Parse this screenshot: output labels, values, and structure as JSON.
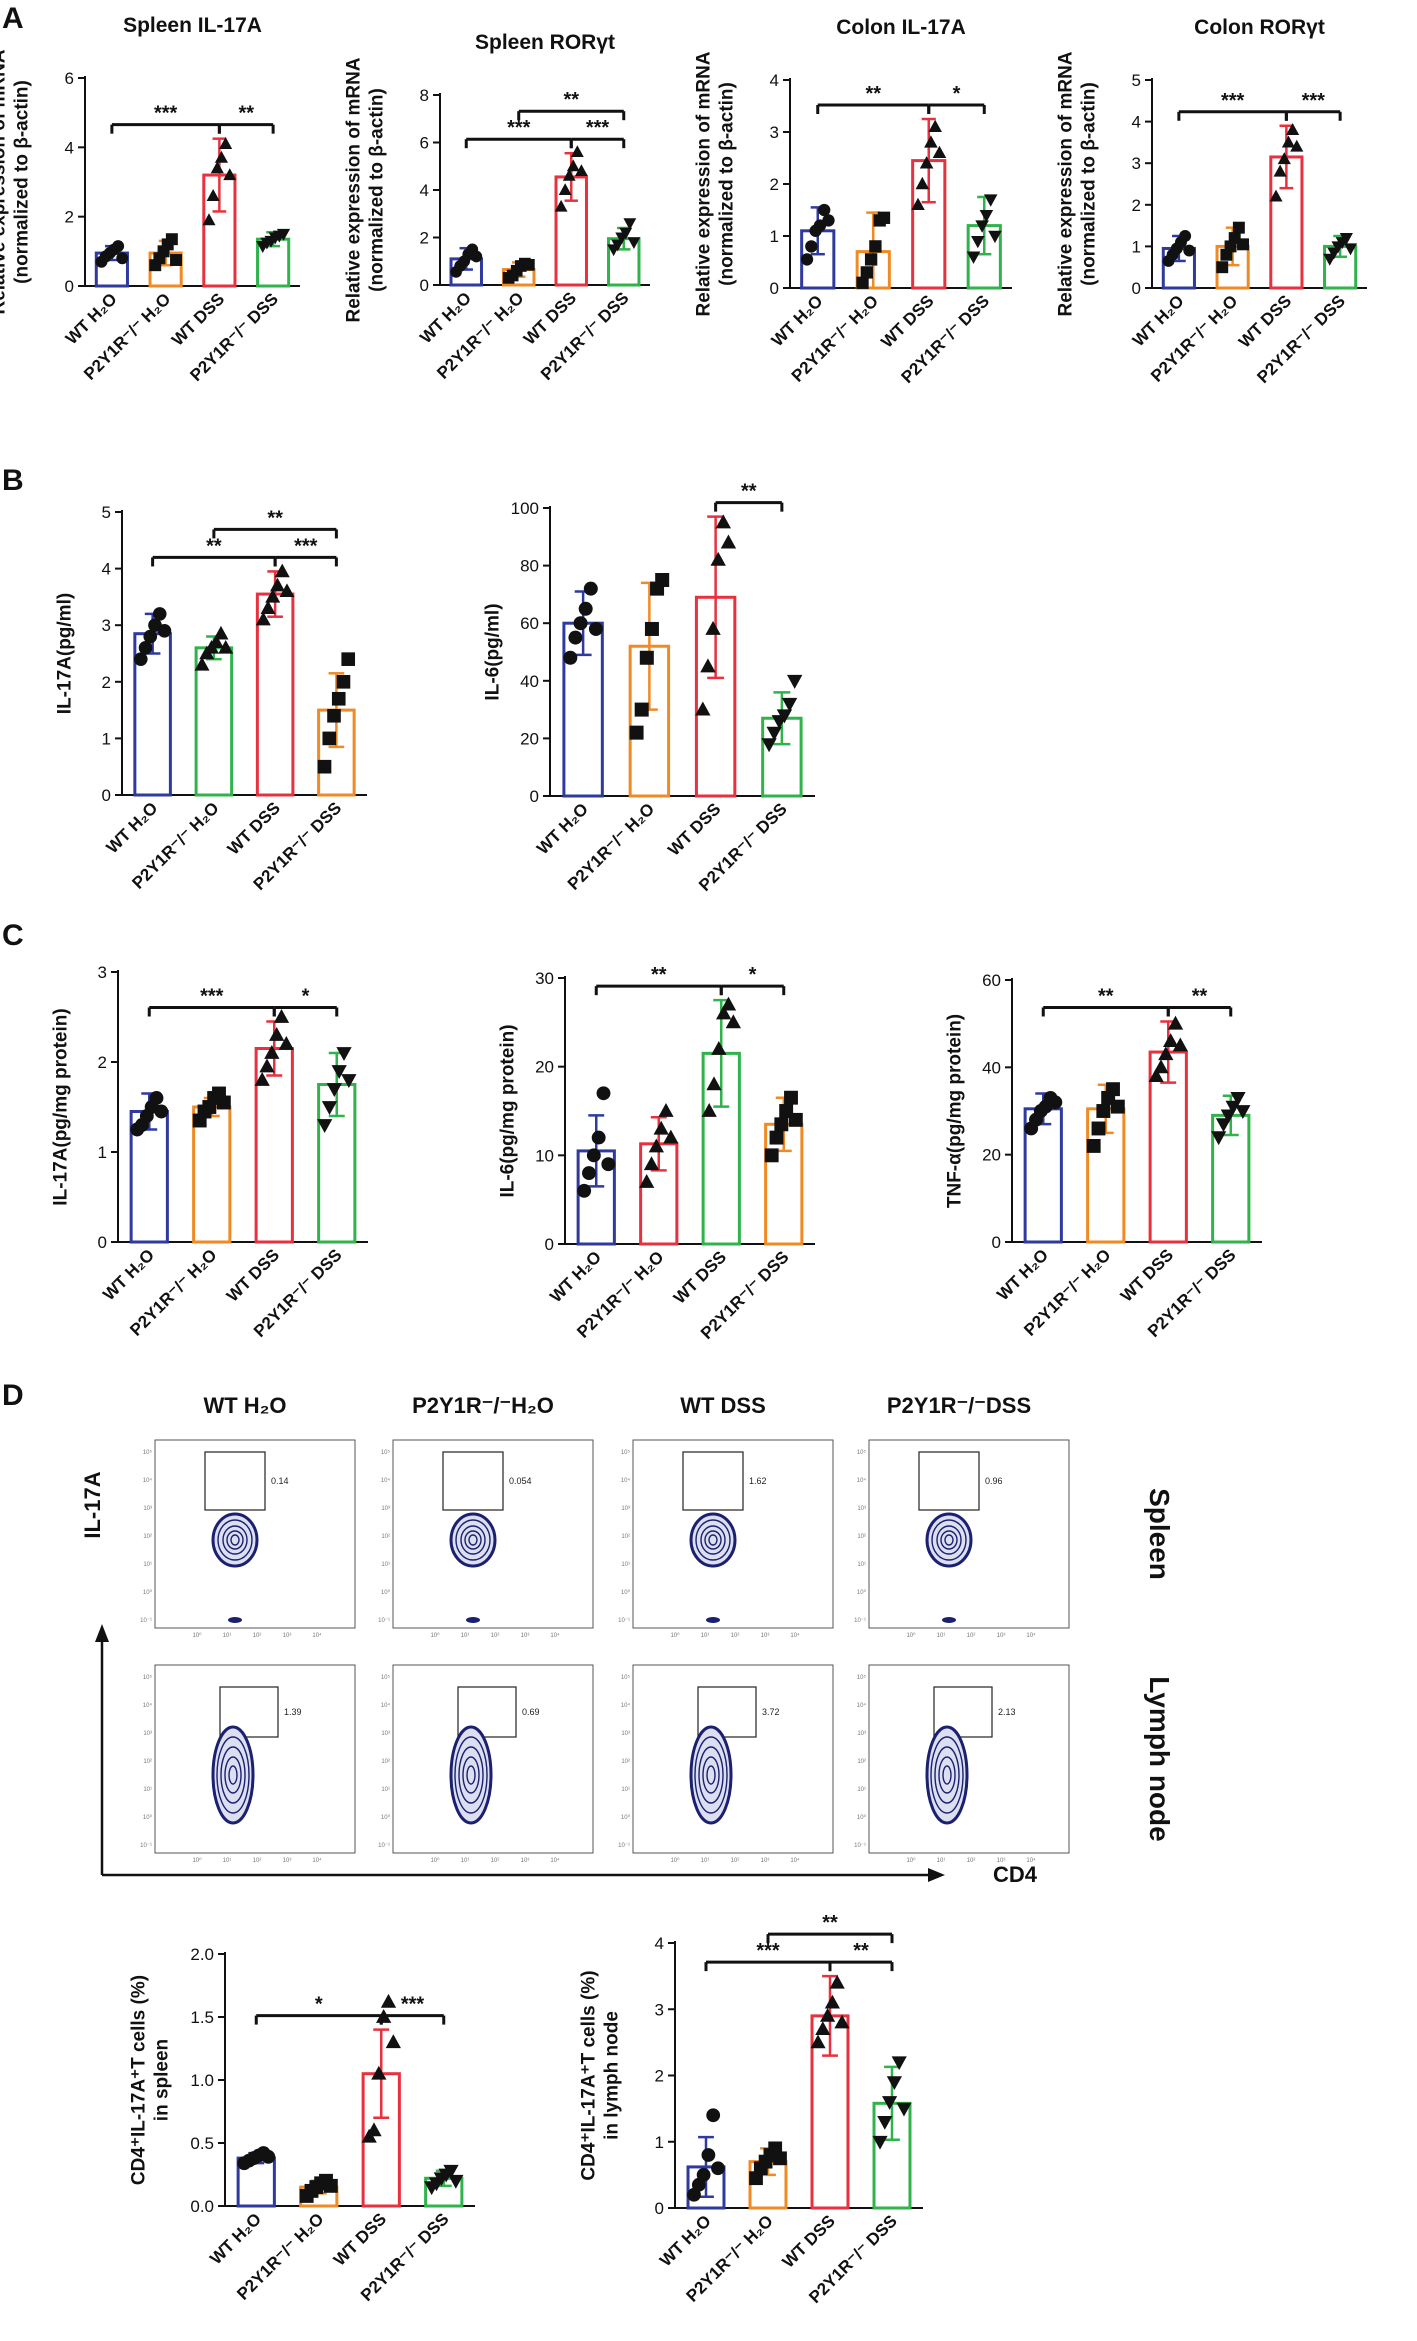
{
  "panel_labels": [
    "A",
    "B",
    "C",
    "D"
  ],
  "colors": {
    "blue": "#2e3a9e",
    "orange": "#f08a24",
    "red": "#e8313f",
    "green": "#2fb34a"
  },
  "chart_data": [
    {
      "id": "A1",
      "type": "bar",
      "title": "Spleen IL-17A",
      "ylabel": "Relative expression of mRNA|(normalized to β-actin)",
      "ylim": [
        0,
        6
      ],
      "yticks": [
        0,
        2,
        4,
        6
      ],
      "categories": [
        "WT H₂O",
        "P2Y1R⁻/⁻ H₂O",
        "WT DSS",
        "P2Y1R⁻/⁻ DSS"
      ],
      "bar_colors": [
        "blue",
        "orange",
        "red",
        "green"
      ],
      "values": [
        0.95,
        0.95,
        3.2,
        1.35
      ],
      "sd": [
        0.2,
        0.35,
        1.05,
        0.2
      ],
      "markers": [
        "circle",
        "square",
        "triangle",
        "triangle-down"
      ],
      "points": [
        [
          0.7,
          0.85,
          0.95,
          1.05,
          1.15,
          0.8
        ],
        [
          0.6,
          0.8,
          1.0,
          1.2,
          1.35,
          0.75
        ],
        [
          1.9,
          2.6,
          3.4,
          3.7,
          4.1,
          3.2
        ],
        [
          1.15,
          1.25,
          1.3,
          1.4,
          1.45,
          1.5
        ]
      ],
      "brackets": [
        {
          "from": 0,
          "to": 2,
          "label": "***",
          "level": 0
        },
        {
          "from": 2,
          "to": 3,
          "label": "**",
          "level": 0
        }
      ]
    },
    {
      "id": "A2",
      "type": "bar",
      "title": "Spleen RORγt",
      "ylabel": "Relative expression of mRNA|(normalized to β-actin)",
      "ylim": [
        0,
        8
      ],
      "yticks": [
        0,
        2,
        4,
        6,
        8
      ],
      "categories": [
        "WT H₂O",
        "P2Y1R⁻/⁻ H₂O",
        "WT DSS",
        "P2Y1R⁻/⁻ DSS"
      ],
      "bar_colors": [
        "blue",
        "orange",
        "red",
        "green"
      ],
      "values": [
        1.1,
        0.65,
        4.55,
        1.95
      ],
      "sd": [
        0.45,
        0.3,
        1.0,
        0.45
      ],
      "markers": [
        "circle",
        "square",
        "triangle",
        "triangle-down"
      ],
      "points": [
        [
          0.55,
          0.8,
          1.0,
          1.3,
          1.5,
          1.2
        ],
        [
          0.3,
          0.4,
          0.6,
          0.8,
          0.9,
          0.85
        ],
        [
          3.3,
          4.0,
          4.6,
          5.0,
          5.6,
          4.8
        ],
        [
          1.5,
          1.7,
          2.0,
          2.2,
          2.6,
          1.8
        ]
      ],
      "brackets": [
        {
          "from": 0,
          "to": 2,
          "label": "***",
          "level": 0
        },
        {
          "from": 2,
          "to": 3,
          "label": "***",
          "level": 0
        },
        {
          "from": 1,
          "to": 3,
          "label": "**",
          "level": 1
        }
      ]
    },
    {
      "id": "A3",
      "type": "bar",
      "title": "Colon IL-17A",
      "ylabel": "Relative expression of mRNA|(normalized to β-actin)",
      "ylim": [
        0,
        4
      ],
      "yticks": [
        0,
        1,
        2,
        3,
        4
      ],
      "categories": [
        "WT H₂O",
        "P2Y1R⁻/⁻ H₂O",
        "WT DSS",
        "P2Y1R⁻/⁻ DSS"
      ],
      "bar_colors": [
        "blue",
        "orange",
        "red",
        "green"
      ],
      "values": [
        1.1,
        0.7,
        2.45,
        1.2
      ],
      "sd": [
        0.45,
        0.75,
        0.8,
        0.55
      ],
      "markers": [
        "circle",
        "square",
        "triangle",
        "triangle-down"
      ],
      "points": [
        [
          0.55,
          0.8,
          1.1,
          1.2,
          1.5,
          1.3
        ],
        [
          0.1,
          0.3,
          0.55,
          0.8,
          1.3,
          1.35
        ],
        [
          1.6,
          2.0,
          2.4,
          2.8,
          3.1,
          2.6
        ],
        [
          0.6,
          0.9,
          1.2,
          1.4,
          1.7,
          1.0
        ]
      ],
      "brackets": [
        {
          "from": 0,
          "to": 2,
          "label": "**",
          "level": 0
        },
        {
          "from": 2,
          "to": 3,
          "label": "*",
          "level": 0
        }
      ]
    },
    {
      "id": "A4",
      "type": "bar",
      "title": "Colon RORγt",
      "ylabel": "Relative expression of mRNA|(normalized to β-actin)",
      "ylim": [
        0,
        5
      ],
      "yticks": [
        0,
        1,
        2,
        3,
        4,
        5
      ],
      "categories": [
        "WT H₂O",
        "P2Y1R⁻/⁻ H₂O",
        "WT DSS",
        "P2Y1R⁻/⁻ DSS"
      ],
      "bar_colors": [
        "blue",
        "orange",
        "red",
        "green"
      ],
      "values": [
        0.95,
        1.0,
        3.15,
        1.0
      ],
      "sd": [
        0.3,
        0.45,
        0.75,
        0.25
      ],
      "markers": [
        "circle",
        "square",
        "triangle",
        "triangle-down"
      ],
      "points": [
        [
          0.65,
          0.8,
          0.95,
          1.1,
          1.25,
          0.9
        ],
        [
          0.5,
          0.8,
          1.0,
          1.2,
          1.45,
          1.05
        ],
        [
          2.2,
          2.8,
          3.1,
          3.5,
          3.8,
          3.4
        ],
        [
          0.7,
          0.85,
          1.0,
          1.1,
          1.2,
          0.95
        ]
      ],
      "brackets": [
        {
          "from": 0,
          "to": 2,
          "label": "***",
          "level": 0
        },
        {
          "from": 2,
          "to": 3,
          "label": "***",
          "level": 0
        }
      ]
    },
    {
      "id": "B1",
      "type": "bar",
      "title": "",
      "ylabel": "IL-17A(pg/ml)",
      "ylim": [
        0,
        5
      ],
      "yticks": [
        0,
        1,
        2,
        3,
        4,
        5
      ],
      "categories": [
        "WT H₂O",
        "P2Y1R⁻/⁻ H₂O",
        "WT DSS",
        "P2Y1R⁻/⁻ DSS"
      ],
      "bar_colors": [
        "blue",
        "green",
        "red",
        "orange"
      ],
      "values": [
        2.85,
        2.6,
        3.55,
        1.5
      ],
      "sd": [
        0.35,
        0.2,
        0.4,
        0.65
      ],
      "markers": [
        "circle",
        "triangle",
        "triangle",
        "square"
      ],
      "points": [
        [
          2.4,
          2.6,
          2.8,
          3.0,
          3.2,
          2.9
        ],
        [
          2.3,
          2.5,
          2.6,
          2.7,
          2.85,
          2.6
        ],
        [
          3.1,
          3.3,
          3.5,
          3.7,
          3.95,
          3.6
        ],
        [
          0.5,
          1.0,
          1.4,
          1.7,
          2.0,
          2.4
        ]
      ],
      "brackets": [
        {
          "from": 0,
          "to": 2,
          "label": "**",
          "level": 0
        },
        {
          "from": 2,
          "to": 3,
          "label": "***",
          "level": 0
        },
        {
          "from": 1,
          "to": 3,
          "label": "**",
          "level": 1
        }
      ]
    },
    {
      "id": "B2",
      "type": "bar",
      "title": "",
      "ylabel": "IL-6(pg/ml)",
      "ylim": [
        0,
        100
      ],
      "yticks": [
        0,
        20,
        40,
        60,
        80,
        100
      ],
      "categories": [
        "WT H₂O",
        "P2Y1R⁻/⁻ H₂O",
        "WT DSS",
        "P2Y1R⁻/⁻ DSS"
      ],
      "bar_colors": [
        "blue",
        "orange",
        "red",
        "green"
      ],
      "values": [
        60,
        52,
        69,
        27
      ],
      "sd": [
        11,
        22,
        28,
        9
      ],
      "markers": [
        "circle",
        "square",
        "triangle",
        "triangle-down"
      ],
      "points": [
        [
          48,
          55,
          60,
          65,
          72,
          58
        ],
        [
          22,
          30,
          48,
          58,
          72,
          75
        ],
        [
          30,
          45,
          58,
          82,
          95,
          88
        ],
        [
          18,
          22,
          26,
          28,
          32,
          40
        ]
      ],
      "brackets": [
        {
          "from": 2,
          "to": 3,
          "label": "**",
          "level": 0
        }
      ]
    },
    {
      "id": "C1",
      "type": "bar",
      "title": "",
      "ylabel": "IL-17A(pg/mg protein)",
      "ylim": [
        0,
        3
      ],
      "yticks": [
        0,
        1,
        2,
        3
      ],
      "categories": [
        "WT H₂O",
        "P2Y1R⁻/⁻ H₂O",
        "WT DSS",
        "P2Y1R⁻/⁻ DSS"
      ],
      "bar_colors": [
        "blue",
        "orange",
        "red",
        "green"
      ],
      "values": [
        1.45,
        1.5,
        2.15,
        1.75
      ],
      "sd": [
        0.2,
        0.1,
        0.3,
        0.35
      ],
      "markers": [
        "circle",
        "square",
        "triangle",
        "triangle-down"
      ],
      "points": [
        [
          1.25,
          1.3,
          1.4,
          1.5,
          1.6,
          1.45
        ],
        [
          1.35,
          1.45,
          1.5,
          1.6,
          1.65,
          1.55
        ],
        [
          1.8,
          1.95,
          2.1,
          2.3,
          2.5,
          2.2
        ],
        [
          1.3,
          1.5,
          1.7,
          1.9,
          2.1,
          1.8
        ]
      ],
      "brackets": [
        {
          "from": 0,
          "to": 2,
          "label": "***",
          "level": 0
        },
        {
          "from": 2,
          "to": 3,
          "label": "*",
          "level": 0
        }
      ]
    },
    {
      "id": "C2",
      "type": "bar",
      "title": "",
      "ylabel": "IL-6(pg/mg protein)",
      "ylim": [
        0,
        30
      ],
      "yticks": [
        0,
        10,
        20,
        30
      ],
      "categories": [
        "WT H₂O",
        "P2Y1R⁻/⁻ H₂O",
        "WT DSS",
        "P2Y1R⁻/⁻ DSS"
      ],
      "bar_colors": [
        "blue",
        "red",
        "green",
        "orange"
      ],
      "values": [
        10.5,
        11.3,
        21.5,
        13.5
      ],
      "sd": [
        4.0,
        3.0,
        6.0,
        3.0
      ],
      "markers": [
        "circle",
        "triangle",
        "triangle",
        "square"
      ],
      "points": [
        [
          6,
          8,
          10,
          12,
          17,
          9
        ],
        [
          7,
          9,
          11,
          13,
          15,
          12
        ],
        [
          15,
          18,
          22,
          26,
          27,
          25
        ],
        [
          10,
          12,
          13.5,
          15,
          16.5,
          14
        ]
      ],
      "brackets": [
        {
          "from": 0,
          "to": 2,
          "label": "**",
          "level": 0
        },
        {
          "from": 2,
          "to": 3,
          "label": "*",
          "level": 0
        }
      ]
    },
    {
      "id": "C3",
      "type": "bar",
      "title": "",
      "ylabel": "TNF-α(pg/mg protein)",
      "ylim": [
        0,
        60
      ],
      "yticks": [
        0,
        20,
        40,
        60
      ],
      "categories": [
        "WT H₂O",
        "P2Y1R⁻/⁻ H₂O",
        "WT DSS",
        "P2Y1R⁻/⁻ DSS"
      ],
      "bar_colors": [
        "blue",
        "orange",
        "red",
        "green"
      ],
      "values": [
        30.5,
        30.5,
        43.5,
        29.0
      ],
      "sd": [
        3.5,
        5.5,
        7.0,
        4.5
      ],
      "markers": [
        "circle",
        "square",
        "triangle",
        "triangle-down"
      ],
      "points": [
        [
          26,
          28,
          30,
          31,
          33,
          32
        ],
        [
          22,
          26,
          30,
          33,
          35,
          31
        ],
        [
          38,
          40,
          43,
          46,
          50,
          45
        ],
        [
          24,
          27,
          29,
          31,
          33,
          30
        ]
      ],
      "brackets": [
        {
          "from": 0,
          "to": 2,
          "label": "**",
          "level": 0
        },
        {
          "from": 2,
          "to": 3,
          "label": "**",
          "level": 0
        }
      ]
    },
    {
      "id": "D1",
      "type": "bar",
      "title": "",
      "ylabel": "CD4⁺IL-17A⁺T cells (%)|in spleen",
      "ylim": [
        0,
        2.0
      ],
      "yticks": [
        0.0,
        0.5,
        1.0,
        1.5,
        2.0
      ],
      "ytick_decimals": 1,
      "categories": [
        "WT H₂O",
        "P2Y1R⁻/⁻ H₂O",
        "WT DSS",
        "P2Y1R⁻/⁻ DSS"
      ],
      "bar_colors": [
        "blue",
        "orange",
        "red",
        "green"
      ],
      "values": [
        0.38,
        0.15,
        1.05,
        0.22
      ],
      "sd": [
        0.04,
        0.05,
        0.35,
        0.06
      ],
      "markers": [
        "circle",
        "square",
        "triangle",
        "triangle-down"
      ],
      "points": [
        [
          0.34,
          0.36,
          0.38,
          0.4,
          0.42,
          0.39
        ],
        [
          0.08,
          0.12,
          0.15,
          0.18,
          0.2,
          0.16
        ],
        [
          0.55,
          0.6,
          1.05,
          1.5,
          1.62,
          1.3
        ],
        [
          0.15,
          0.18,
          0.22,
          0.25,
          0.28,
          0.2
        ]
      ],
      "brackets": [
        {
          "from": 0,
          "to": 2,
          "label": "*",
          "level": 0
        },
        {
          "from": 2,
          "to": 3,
          "label": "***",
          "level": 0
        }
      ]
    },
    {
      "id": "D2",
      "type": "bar",
      "title": "",
      "ylabel": "CD4⁺IL-17A⁺T cells (%)|in lymph node",
      "ylim": [
        0,
        4
      ],
      "yticks": [
        0,
        1,
        2,
        3,
        4
      ],
      "categories": [
        "WT H₂O",
        "P2Y1R⁻/⁻ H₂O",
        "WT DSS",
        "P2Y1R⁻/⁻ DSS"
      ],
      "bar_colors": [
        "blue",
        "orange",
        "red",
        "green"
      ],
      "values": [
        0.62,
        0.7,
        2.9,
        1.58
      ],
      "sd": [
        0.45,
        0.2,
        0.6,
        0.55
      ],
      "markers": [
        "circle",
        "square",
        "triangle",
        "triangle-down"
      ],
      "points": [
        [
          0.2,
          0.35,
          0.5,
          0.8,
          1.4,
          0.6
        ],
        [
          0.45,
          0.6,
          0.7,
          0.8,
          0.9,
          0.75
        ],
        [
          2.5,
          2.7,
          2.9,
          3.1,
          3.4,
          2.8
        ],
        [
          1.0,
          1.3,
          1.6,
          1.9,
          2.2,
          1.5
        ]
      ],
      "brackets": [
        {
          "from": 0,
          "to": 2,
          "label": "***",
          "level": 0
        },
        {
          "from": 2,
          "to": 3,
          "label": "**",
          "level": 0
        },
        {
          "from": 1,
          "to": 3,
          "label": "**",
          "level": 1
        }
      ]
    }
  ],
  "flow": {
    "column_titles": [
      "WT H₂O",
      "P2Y1R⁻/⁻H₂O",
      "WT DSS",
      "P2Y1R⁻/⁻DSS"
    ],
    "row_labels": [
      "Spleen",
      "Lymph node"
    ],
    "y_axis_label": "IL-17A",
    "x_axis_label": "CD4",
    "gate_values": [
      [
        "0.14",
        "0.054",
        "1.62",
        "0.96"
      ],
      [
        "1.39",
        "0.69",
        "3.72",
        "2.13"
      ]
    ],
    "axis_ticks": [
      "10⁻¹",
      "10⁰",
      "10¹",
      "10²",
      "10³",
      "10⁴",
      "10⁵"
    ]
  }
}
